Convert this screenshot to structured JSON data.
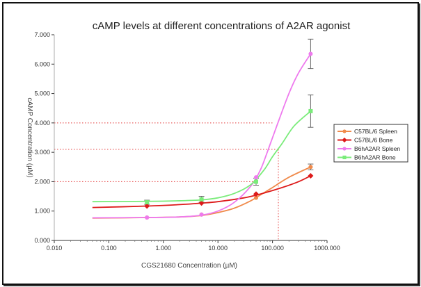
{
  "chart_data": {
    "type": "scatter",
    "title": "cAMP levels at different concentrations of A2AR agonist",
    "xlabel": "CGS21680 Concentration (µM)",
    "ylabel": "cAMP Concentration (µM)",
    "x_scale": "log",
    "xlim": [
      0.01,
      1000
    ],
    "ylim": [
      0,
      7
    ],
    "x_ticks": [
      0.01,
      0.1,
      1,
      10,
      100,
      1000
    ],
    "x_tick_labels": [
      "0.010",
      "0.100",
      "1.000",
      "10.000",
      "100.000",
      "1000.000"
    ],
    "y_ticks": [
      0,
      1,
      2,
      3,
      4,
      5,
      6,
      7
    ],
    "y_tick_labels": [
      "0.000",
      "1.000",
      "2.000",
      "3.000",
      "4.000",
      "5.000",
      "6.000",
      "7.000"
    ],
    "grid": false,
    "legend_position": "right",
    "series": [
      {
        "name": "C57BL/6 Spleen",
        "color": "#f08a4b",
        "marker": "circle",
        "x": [
          0.5,
          5,
          50,
          500
        ],
        "y": [
          0.78,
          0.88,
          1.45,
          2.5
        ],
        "error": [
          0,
          0,
          0,
          0.1
        ],
        "fit": [
          [
            0.05,
            0.76
          ],
          [
            0.5,
            0.78
          ],
          [
            2,
            0.8
          ],
          [
            5,
            0.85
          ],
          [
            10,
            0.95
          ],
          [
            20,
            1.1
          ],
          [
            40,
            1.35
          ],
          [
            60,
            1.55
          ],
          [
            100,
            1.8
          ],
          [
            200,
            2.15
          ],
          [
            500,
            2.5
          ]
        ]
      },
      {
        "name": "C57BL/6 Bone",
        "color": "#dd1a1a",
        "marker": "diamond",
        "x": [
          0.5,
          5,
          50,
          500
        ],
        "y": [
          1.17,
          1.27,
          1.58,
          2.2
        ],
        "error": [
          0,
          0,
          0,
          0
        ],
        "fit": [
          [
            0.05,
            1.12
          ],
          [
            0.5,
            1.17
          ],
          [
            2,
            1.22
          ],
          [
            5,
            1.27
          ],
          [
            10,
            1.32
          ],
          [
            30,
            1.45
          ],
          [
            60,
            1.58
          ],
          [
            150,
            1.8
          ],
          [
            300,
            2.0
          ],
          [
            500,
            2.2
          ]
        ]
      },
      {
        "name": "B6hA2AR Spleen",
        "color": "#ee7aee",
        "marker": "circle",
        "x": [
          0.5,
          5,
          50,
          500
        ],
        "y": [
          0.78,
          0.88,
          2.15,
          6.35
        ],
        "error": [
          0,
          0,
          0,
          0.5
        ],
        "fit": [
          [
            0.05,
            0.77
          ],
          [
            0.5,
            0.78
          ],
          [
            2,
            0.8
          ],
          [
            5,
            0.86
          ],
          [
            10,
            1.0
          ],
          [
            20,
            1.3
          ],
          [
            40,
            1.85
          ],
          [
            60,
            2.4
          ],
          [
            80,
            3.0
          ],
          [
            120,
            3.9
          ],
          [
            200,
            5.0
          ],
          [
            300,
            5.7
          ],
          [
            500,
            6.35
          ]
        ]
      },
      {
        "name": "B6hA2AR Bone",
        "color": "#7aec7a",
        "marker": "square",
        "x": [
          0.5,
          5,
          50,
          500
        ],
        "y": [
          1.3,
          1.4,
          2.0,
          4.4
        ],
        "error": [
          0.07,
          0.1,
          0.12,
          0.55
        ],
        "fit": [
          [
            0.05,
            1.32
          ],
          [
            0.5,
            1.33
          ],
          [
            2,
            1.35
          ],
          [
            5,
            1.38
          ],
          [
            10,
            1.45
          ],
          [
            20,
            1.6
          ],
          [
            40,
            1.9
          ],
          [
            70,
            2.4
          ],
          [
            100,
            2.85
          ],
          [
            150,
            3.3
          ],
          [
            250,
            3.9
          ],
          [
            500,
            4.4
          ]
        ]
      }
    ]
  }
}
